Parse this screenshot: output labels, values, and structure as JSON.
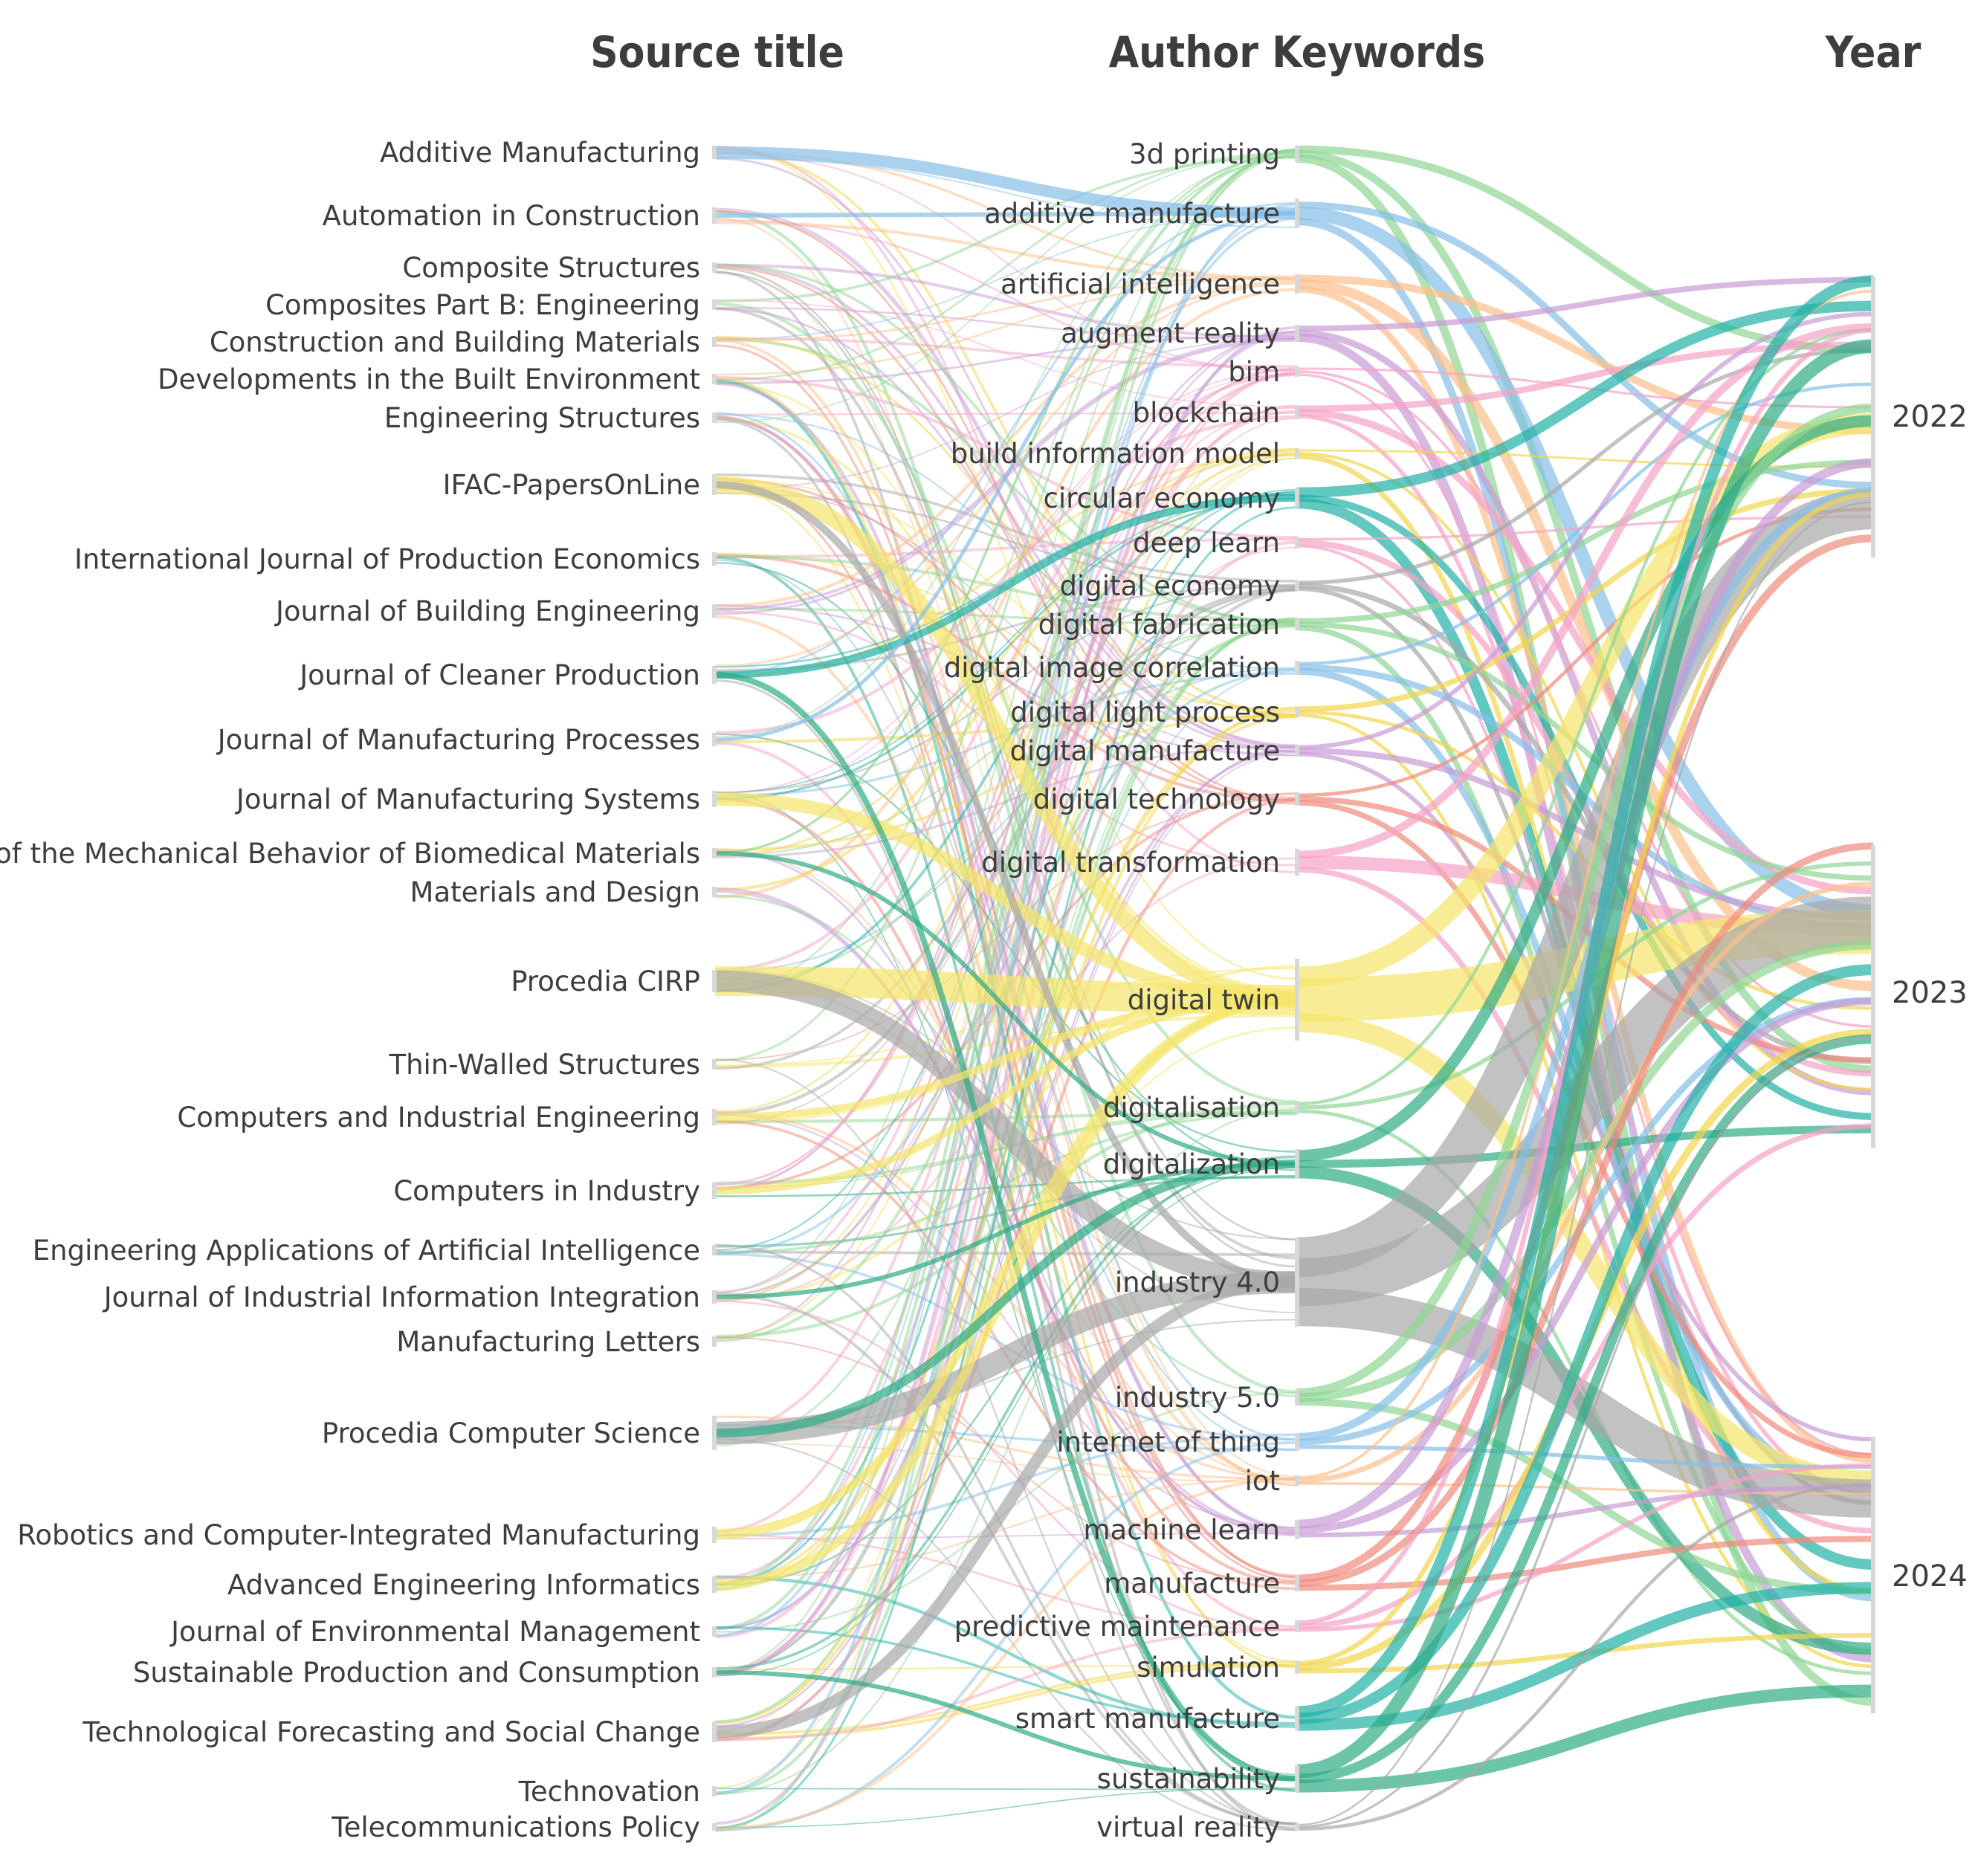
{
  "headers": {
    "source": "Source title",
    "keywords": "Author Keywords",
    "year": "Year"
  },
  "sources": [
    "Additive Manufacturing",
    "Automation in Construction",
    "Composite Structures",
    "Composites Part B: Engineering",
    "Construction and Building Materials",
    "Developments in the Built Environment",
    "Engineering Structures",
    "IFAC-PapersOnLine",
    "International Journal of Production Economics",
    "Journal of Building Engineering",
    "Journal of Cleaner Production",
    "Journal of Manufacturing Processes",
    "Journal of Manufacturing Systems",
    "Journal of the Mechanical Behavior of Biomedical Materials",
    "Materials and Design",
    "Procedia CIRP",
    "Thin-Walled Structures",
    "Computers and Industrial Engineering",
    "Computers in Industry",
    "Engineering Applications of Artificial Intelligence",
    "Journal of Industrial Information Integration",
    "Manufacturing Letters",
    "Procedia Computer Science",
    "Robotics and Computer-Integrated Manufacturing",
    "Advanced Engineering Informatics",
    "Journal of Environmental Management",
    "Sustainable Production and Consumption",
    "Technological Forecasting and Social Change",
    "Technovation",
    "Telecommunications Policy"
  ],
  "keywords": [
    "3d printing",
    "additive manufacture",
    "artificial intelligence",
    "augment reality",
    "bim",
    "blockchain",
    "build information model",
    "circular economy",
    "deep learn",
    "digital economy",
    "digital fabrication",
    "digital image correlation",
    "digital light process",
    "digital manufacture",
    "digital technology",
    "digital transformation",
    "digital twin",
    "digitalisation",
    "digitalization",
    "industry 4.0",
    "industry 5.0",
    "internet of thing",
    "iot",
    "machine learn",
    "manufacture",
    "predictive maintenance",
    "simulation",
    "smart manufacture",
    "sustainability",
    "virtual reality"
  ],
  "years": [
    "2022",
    "2023",
    "2024"
  ],
  "keyword_colors": [
    "#8fd694",
    "#86bfe8",
    "#fdbf8a",
    "#c89bd6",
    "#f5a3c6",
    "#f5a3c6",
    "#f2d54a",
    "#1fb0a5",
    "#f5a3c6",
    "#a8a8a8",
    "#8fd694",
    "#86bfe8",
    "#f2d54a",
    "#c89bd6",
    "#ef8a7a",
    "#f5a3c6",
    "#f5e66a",
    "#8fd694",
    "#2eab84",
    "#a8a8a8",
    "#8fd694",
    "#86bfe8",
    "#fdbf8a",
    "#c89bd6",
    "#ef8a7a",
    "#f5a3c6",
    "#f2d54a",
    "#1fb0a5",
    "#2eab84",
    "#a8a8a8"
  ]
}
